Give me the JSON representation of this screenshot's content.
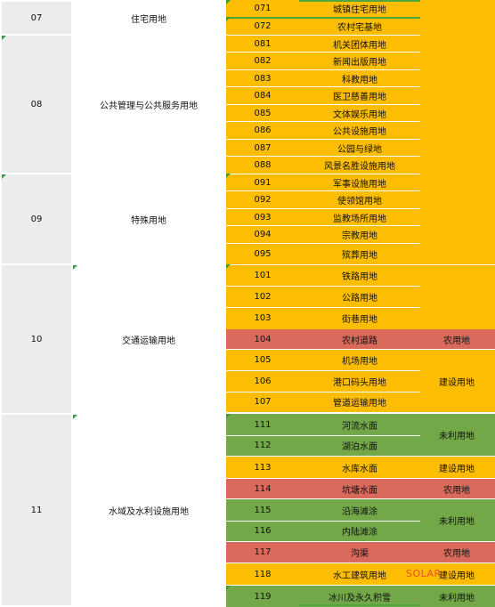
{
  "level1": [
    {
      "code": "07",
      "name": "住宅用地"
    },
    {
      "code": "08",
      "name": "公共管理与公共服务用地"
    },
    {
      "code": "09",
      "name": "特殊用地"
    },
    {
      "code": "10",
      "name": "交通运输用地"
    },
    {
      "code": "11",
      "name": "水域及水利设施用地"
    }
  ],
  "level2": [
    {
      "code": "071",
      "name": "城镇住宅用地"
    },
    {
      "code": "072",
      "name": "农村宅基地"
    },
    {
      "code": "081",
      "name": "机关团体用地"
    },
    {
      "code": "082",
      "name": "新闻出版用地"
    },
    {
      "code": "083",
      "name": "科教用地"
    },
    {
      "code": "084",
      "name": "医卫慈善用地"
    },
    {
      "code": "085",
      "name": "文体娱乐用地"
    },
    {
      "code": "086",
      "name": "公共设施用地"
    },
    {
      "code": "087",
      "name": "公园与绿地"
    },
    {
      "code": "088",
      "name": "风景名胜设施用地"
    },
    {
      "code": "091",
      "name": "军事设施用地"
    },
    {
      "code": "092",
      "name": "使领馆用地"
    },
    {
      "code": "093",
      "name": "监教场所用地"
    },
    {
      "code": "094",
      "name": "宗教用地"
    },
    {
      "code": "095",
      "name": "殡葬用地"
    },
    {
      "code": "101",
      "name": "铁路用地"
    },
    {
      "code": "102",
      "name": "公路用地"
    },
    {
      "code": "103",
      "name": "街巷用地"
    },
    {
      "code": "104",
      "name": "农村道路"
    },
    {
      "code": "105",
      "name": "机场用地"
    },
    {
      "code": "106",
      "name": "港口码头用地"
    },
    {
      "code": "107",
      "name": "管道运输用地"
    },
    {
      "code": "111",
      "name": "河流水面"
    },
    {
      "code": "112",
      "name": "湖泊水面"
    },
    {
      "code": "113",
      "name": "水库水面"
    },
    {
      "code": "114",
      "name": "坑塘水面"
    },
    {
      "code": "115",
      "name": "沿海滩涂"
    },
    {
      "code": "116",
      "name": "内陆滩涂"
    },
    {
      "code": "117",
      "name": "沟渠"
    },
    {
      "code": "118",
      "name": "水工建筑用地"
    },
    {
      "code": "119",
      "name": "冰川及永久积雪"
    }
  ],
  "category_labels": {
    "agri_104": "农用地",
    "constr_105_107": "建设用地",
    "unused_111_112": "未利用地",
    "constr_113": "建设用地",
    "agri_114": "农用地",
    "unused_115_116": "未利用地",
    "agri_117": "农用地",
    "constr_118": "建设用地",
    "unused_119": "未利用地"
  },
  "watermark": "SOLAR",
  "colors": {
    "construction": "#fdbd02",
    "agricultural": "#d9695a",
    "unused": "#72a848",
    "level1_code_bg": "#ececec"
  }
}
